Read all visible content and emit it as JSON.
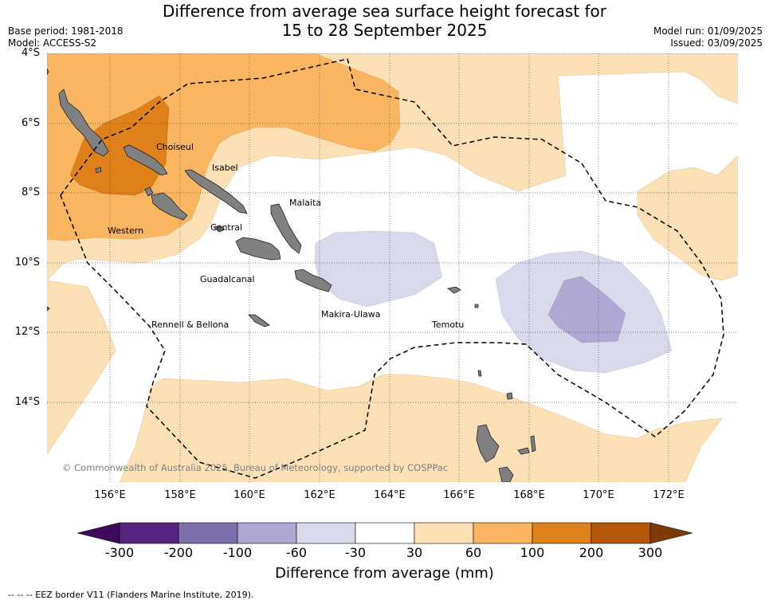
{
  "header": {
    "title_line1": "Difference from average sea surface height forecast for",
    "title_line2": "15 to 28 September 2025",
    "base_period": "Base period: 1981-2018",
    "model": "Model: ACCESS-S2",
    "model_run": "Model run: 01/09/2025",
    "issued": "Issued: 03/09/2025"
  },
  "map": {
    "lat_labels": [
      "4°S",
      "6°S",
      "8°S",
      "10°S",
      "12°S",
      "14°S"
    ],
    "lon_labels": [
      "156°E",
      "158°E",
      "160°E",
      "162°E",
      "164°E",
      "166°E",
      "168°E",
      "170°E",
      "172°E"
    ],
    "provinces": [
      "Choiseul",
      "Isabel",
      "Malaita",
      "Western",
      "Central",
      "Guadalcanal",
      "Makira-Ulawa",
      "Rennell & Bellona",
      "Temotu"
    ],
    "copyright": "© Commonwealth of Australia 2025, Bureau of Meteorology, supported by COSPPac",
    "colors": {
      "pos_30_60": "#fde0b6",
      "pos_60_100": "#f9b560",
      "pos_100_200": "#e0801a",
      "neg_30_60": "#d8d9ea",
      "neg_60_100": "#b0a8d2",
      "land": "#808080",
      "eez": "#000000"
    }
  },
  "colorbar": {
    "label": "Difference from average (mm)",
    "ticks": [
      "-300",
      "-200",
      "-100",
      "-60",
      "-30",
      "30",
      "60",
      "100",
      "200",
      "300"
    ],
    "colors": [
      "#3f0a5e",
      "#57247f",
      "#7e6fad",
      "#aea7d1",
      "#d8d9ea",
      "#ffffff",
      "#fde0b6",
      "#f9b560",
      "#e0801a",
      "#b35807",
      "#7d3b06"
    ]
  },
  "footnote": "--  --  -- EEZ border V11 (Flanders Marine Institute, 2019)."
}
